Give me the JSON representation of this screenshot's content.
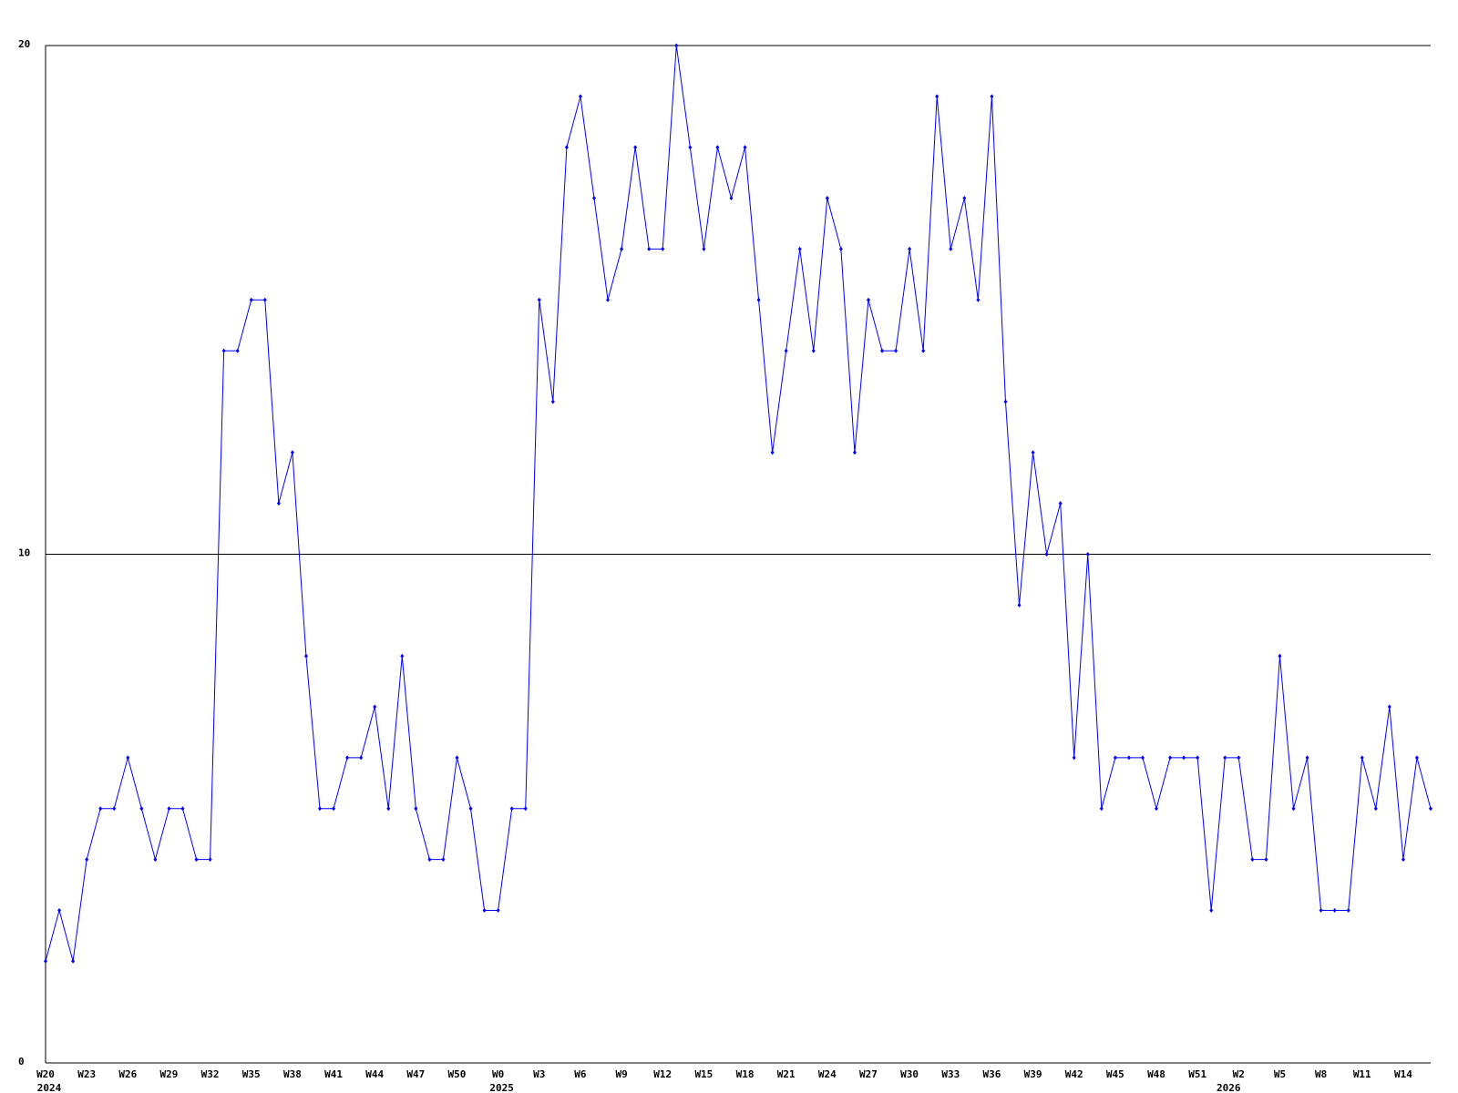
{
  "chart_data": {
    "type": "line",
    "categories": [
      "W20",
      null,
      null,
      "W23",
      null,
      null,
      "W26",
      null,
      null,
      "W29",
      null,
      null,
      "W32",
      null,
      null,
      "W35",
      null,
      null,
      "W38",
      null,
      null,
      "W41",
      null,
      null,
      "W44",
      null,
      null,
      "W47",
      null,
      null,
      "W50",
      null,
      null,
      "W0",
      null,
      null,
      "W3",
      null,
      null,
      "W6",
      null,
      null,
      "W9",
      null,
      null,
      "W12",
      null,
      null,
      "W15",
      null,
      null,
      "W18",
      null,
      null,
      "W21",
      null,
      null,
      "W24",
      null,
      null,
      "W27",
      null,
      null,
      "W30",
      null,
      null,
      "W33",
      null,
      null,
      "W36",
      null,
      null,
      "W39",
      null,
      null,
      "W42",
      null,
      null,
      "W45",
      null,
      null,
      "W48",
      null,
      null,
      "W51",
      null,
      null,
      "W2",
      null,
      null,
      "W5",
      null,
      null,
      "W8",
      null,
      null,
      "W11",
      null,
      null,
      "W14",
      null,
      null
    ],
    "year_labels": [
      "2024",
      null,
      null,
      null,
      null,
      null,
      null,
      null,
      null,
      null,
      null,
      null,
      null,
      null,
      null,
      null,
      null,
      null,
      null,
      null,
      null,
      null,
      null,
      null,
      null,
      null,
      null,
      null,
      null,
      null,
      null,
      null,
      null,
      "2025",
      null,
      null,
      null,
      null,
      null,
      null,
      null,
      null,
      null,
      null,
      null,
      null,
      null,
      null,
      null,
      null,
      null,
      null,
      null,
      null,
      null,
      null,
      null,
      null,
      null,
      null,
      null,
      null,
      null,
      null,
      null,
      null,
      null,
      null,
      null,
      null,
      null,
      null,
      null,
      null,
      null,
      null,
      null,
      null,
      null,
      null,
      null,
      null,
      null,
      null,
      null,
      null,
      "2026",
      null,
      null,
      null,
      null,
      null,
      null,
      null,
      null,
      null,
      null,
      null,
      null,
      null,
      null
    ],
    "values": [
      2,
      3,
      2,
      4,
      5,
      5,
      6,
      5,
      4,
      5,
      5,
      4,
      4,
      14,
      14,
      15,
      15,
      11,
      12,
      8,
      5,
      5,
      6,
      6,
      7,
      5,
      8,
      5,
      4,
      4,
      6,
      5,
      3,
      3,
      5,
      5,
      15,
      13,
      18,
      19,
      17,
      15,
      16,
      18,
      16,
      16,
      20,
      18,
      16,
      18,
      17,
      18,
      15,
      12,
      14,
      16,
      14,
      17,
      16,
      12,
      15,
      14,
      14,
      16,
      14,
      19,
      16,
      17,
      15,
      19,
      13,
      9,
      12,
      10,
      11,
      6,
      10,
      5,
      6,
      6,
      6,
      5,
      6,
      6,
      6,
      3,
      6,
      6,
      4,
      4,
      8,
      5,
      6,
      3,
      3,
      3,
      6,
      5,
      7,
      4,
      6,
      5
    ],
    "color": "#0000ff",
    "ylim": [
      0,
      20
    ],
    "yticks": [
      0,
      10,
      20
    ],
    "grid": true
  }
}
